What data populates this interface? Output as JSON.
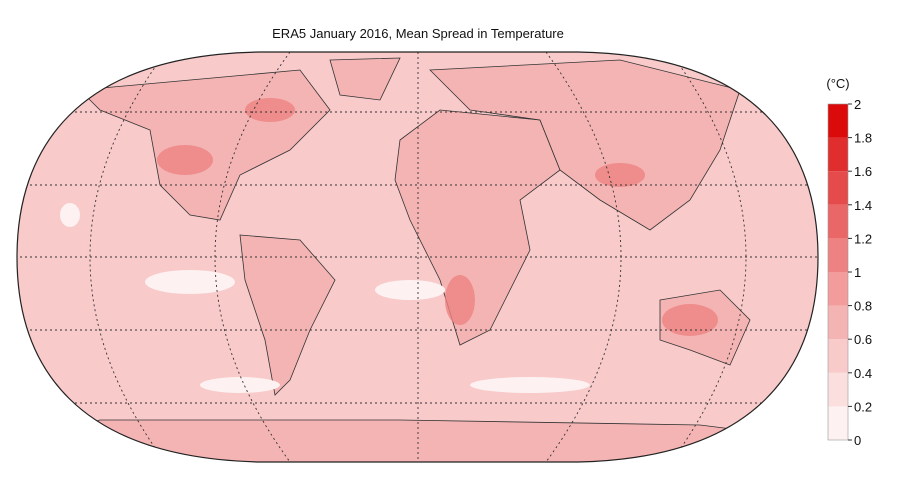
{
  "map": {
    "title": "ERA5 January 2016, Mean Spread in Temperature",
    "colorbar": {
      "unit": "(°C)",
      "lim": [
        0,
        2
      ],
      "ticks": [
        0,
        0.2,
        0.4,
        0.6,
        0.8,
        1,
        1.2,
        1.4,
        1.6,
        1.8,
        2
      ],
      "colors": [
        "#fdf1f1",
        "#fbdede",
        "#f8caca",
        "#f5b4b4",
        "#f29c9c",
        "#ee8282",
        "#ea6767",
        "#e54b4b",
        "#e02d2d",
        "#dc0b0b"
      ]
    }
  }
}
